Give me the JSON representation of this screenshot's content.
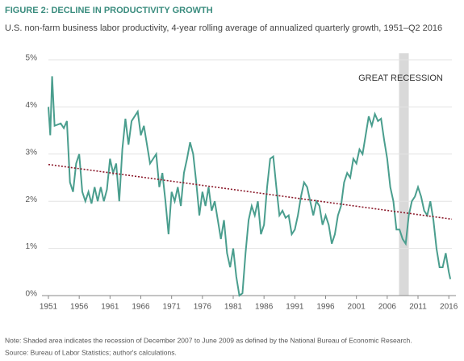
{
  "chart_data": {
    "type": "line",
    "title": "FIGURE 2: DECLINE IN PRODUCTIVITY GROWTH",
    "subtitle": "U.S. non-farm business labor productivity, 4-year rolling average of annualized quarterly growth, 1951–Q2 2016",
    "annotation": "GREAT RECESSION",
    "shade": [
      2007.92,
      2009.5
    ],
    "shade_color": "#d9d9d9",
    "notes": [
      "Note: Shaded area indicates the recession of December 2007 to June 2009 as defined by the National Bureau of Economic Research.",
      "Source: Bureau of Labor Statistics; author's calculations."
    ],
    "xlim": [
      1951,
      2016.5
    ],
    "ylim": [
      0,
      5
    ],
    "xticks": [
      1951,
      1956,
      1961,
      1966,
      1971,
      1976,
      1981,
      1986,
      1991,
      1996,
      2001,
      2006,
      2011,
      2016
    ],
    "yticks": [
      {
        "value": 0,
        "label": "0%"
      },
      {
        "value": 1,
        "label": "1%"
      },
      {
        "value": 2,
        "label": "2%"
      },
      {
        "value": 3,
        "label": "3%"
      },
      {
        "value": 4,
        "label": "4%"
      },
      {
        "value": 5,
        "label": "5%"
      }
    ],
    "grid": true,
    "x": [
      1951,
      1951.3,
      1951.6,
      1952,
      1953,
      1953.5,
      1954,
      1954.5,
      1955,
      1955.5,
      1956,
      1956.5,
      1957,
      1957.5,
      1958,
      1958.5,
      1959,
      1959.5,
      1960,
      1960.5,
      1961,
      1961.5,
      1962,
      1962.5,
      1963,
      1963.5,
      1964,
      1964.5,
      1965,
      1965.5,
      1966,
      1966.5,
      1967,
      1967.5,
      1968,
      1968.5,
      1969,
      1969.5,
      1970,
      1970.5,
      1971,
      1971.5,
      1972,
      1972.5,
      1973,
      1973.5,
      1974,
      1974.5,
      1975,
      1975.5,
      1976,
      1976.5,
      1977,
      1977.5,
      1978,
      1978.5,
      1979,
      1979.5,
      1980,
      1980.5,
      1981,
      1981.5,
      1982,
      1982.5,
      1983,
      1983.5,
      1984,
      1984.5,
      1985,
      1985.5,
      1986,
      1986.5,
      1987,
      1987.5,
      1988,
      1988.5,
      1989,
      1989.5,
      1990,
      1990.5,
      1991,
      1991.5,
      1992,
      1992.5,
      1993,
      1993.5,
      1994,
      1994.5,
      1995,
      1995.5,
      1996,
      1996.5,
      1997,
      1997.5,
      1998,
      1998.5,
      1999,
      1999.5,
      2000,
      2000.5,
      2001,
      2001.5,
      2002,
      2002.5,
      2003,
      2003.5,
      2004,
      2004.5,
      2005,
      2005.5,
      2006,
      2006.5,
      2007,
      2007.5,
      2008,
      2008.5,
      2009,
      2009.5,
      2010,
      2010.5,
      2011,
      2011.5,
      2012,
      2012.5,
      2013,
      2013.5,
      2014,
      2014.5,
      2015,
      2015.5,
      2016,
      2016.25
    ],
    "series": [
      {
        "color": "#4a9e8e",
        "values": [
          4.0,
          3.4,
          4.65,
          3.6,
          3.65,
          3.55,
          3.7,
          2.4,
          2.2,
          2.8,
          3.0,
          2.2,
          2.0,
          2.2,
          1.95,
          2.3,
          2.0,
          2.3,
          2.0,
          2.25,
          2.9,
          2.6,
          2.8,
          2.0,
          3.1,
          3.75,
          3.2,
          3.7,
          3.8,
          3.9,
          3.4,
          3.6,
          3.2,
          2.8,
          2.9,
          3.0,
          2.3,
          2.6,
          2.0,
          1.3,
          2.2,
          2.0,
          2.3,
          1.9,
          2.6,
          2.9,
          3.25,
          3.0,
          2.4,
          1.7,
          2.2,
          1.9,
          2.3,
          1.8,
          2.0,
          1.6,
          1.2,
          1.6,
          0.9,
          0.6,
          1.0,
          0.4,
          0.0,
          0.05,
          0.9,
          1.6,
          1.9,
          1.7,
          2.0,
          1.3,
          1.5,
          2.3,
          2.9,
          2.95,
          2.3,
          1.7,
          1.8,
          1.65,
          1.7,
          1.3,
          1.4,
          1.7,
          2.1,
          2.4,
          2.3,
          2.0,
          1.7,
          2.0,
          1.9,
          1.5,
          1.7,
          1.5,
          1.1,
          1.3,
          1.7,
          1.9,
          2.4,
          2.6,
          2.5,
          2.9,
          2.8,
          3.1,
          3.0,
          3.4,
          3.8,
          3.6,
          3.85,
          3.7,
          3.75,
          3.3,
          2.9,
          2.3,
          2.0,
          1.4,
          1.4,
          1.2,
          1.1,
          1.7,
          2.0,
          2.1,
          2.3,
          2.1,
          1.8,
          1.7,
          2.0,
          1.6,
          1.0,
          0.6,
          0.6,
          0.9,
          0.5,
          0.35
        ]
      }
    ],
    "trend": {
      "x": [
        1951,
        2016.5
      ],
      "values": [
        2.78,
        1.62
      ],
      "color": "#8b1a2b"
    }
  }
}
